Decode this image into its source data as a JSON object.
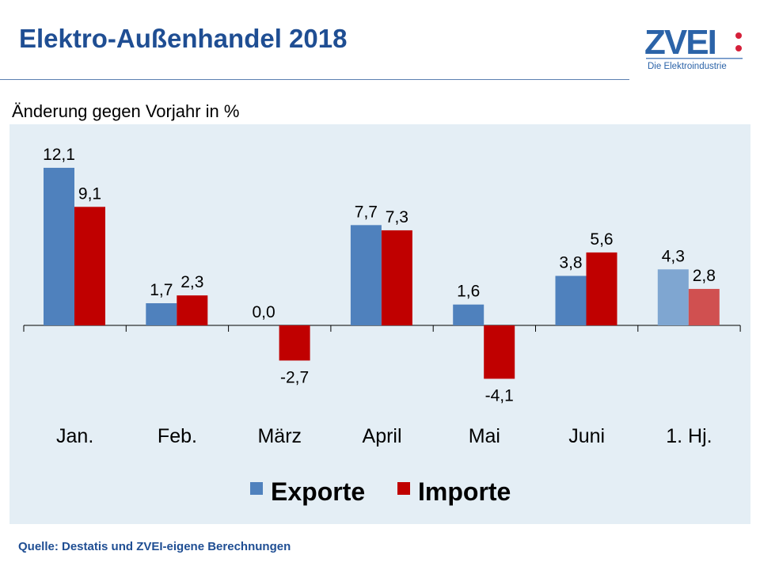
{
  "header": {
    "title": "Elektro-Außenhandel 2018",
    "logo_text": "ZVEI:",
    "logo_tagline": "Die Elektroindustrie"
  },
  "footer": {
    "source": "Quelle: Destatis und ZVEI-eigene Berechnungen"
  },
  "chart_data": {
    "type": "bar",
    "title": "",
    "subtitle": "Änderung gegen Vorjahr in %",
    "categories": [
      "Jan.",
      "Feb.",
      "März",
      "April",
      "Mai",
      "Juni",
      "1. Hj."
    ],
    "series": [
      {
        "name": "Exporte",
        "color": "#4F81BD",
        "values": [
          12.1,
          1.7,
          0.0,
          7.7,
          1.6,
          3.8,
          4.3
        ],
        "labels": [
          "12,1",
          "1,7",
          "0,0",
          "7,7",
          "1,6",
          "3,8",
          "4,3"
        ]
      },
      {
        "name": "Importe",
        "color": "#C00000",
        "values": [
          9.1,
          2.3,
          -2.7,
          7.3,
          -4.1,
          5.6,
          2.8
        ],
        "labels": [
          "9,1",
          "2,3",
          "-2,7",
          "7,3",
          "-4,1",
          "5,6",
          "2,8"
        ]
      }
    ],
    "highlight_category": "1. Hj.",
    "highlight_colors": {
      "Exporte": "#7FA6D1",
      "Importe": "#D05050"
    },
    "grid": false,
    "legend": "bottom"
  }
}
